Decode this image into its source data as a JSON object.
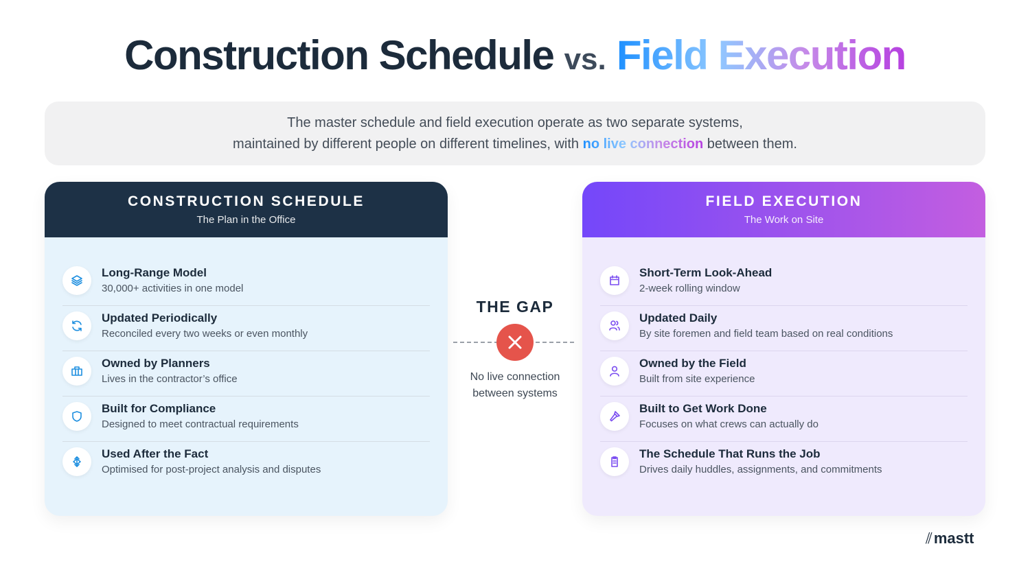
{
  "header": {
    "title_main": "Construction Schedule",
    "title_vs": "vs.",
    "title_accent": "Field Execution"
  },
  "intro": {
    "line1": "The master schedule and field execution operate as two separate systems,",
    "line2_start": "maintained by different people on different timelines, with",
    "line2_highlight": "no live connection",
    "line2_end": "between them."
  },
  "left_panel": {
    "title": "CONSTRUCTION SCHEDULE",
    "subtitle": "The Plan in the Office",
    "items": [
      {
        "title": "Long-Range Model",
        "description": "30,000+ activities in one model"
      },
      {
        "title": "Updated Periodically",
        "description": "Reconciled every two weeks or even monthly"
      },
      {
        "title": "Owned by Planners",
        "description": "Lives in the contractor’s office"
      },
      {
        "title": "Built for Compliance",
        "description": "Designed to meet contractual requirements"
      },
      {
        "title": "Used After the Fact",
        "description": "Optimised for post-project analysis and disputes"
      }
    ]
  },
  "gap": {
    "label": "THE GAP",
    "note_line1": "No live connection",
    "note_line2": "between systems"
  },
  "right_panel": {
    "title": "FIELD EXECUTION",
    "subtitle": "The Work on Site",
    "items": [
      {
        "title": "Short-Term Look-Ahead",
        "description": "2-week rolling window"
      },
      {
        "title": "Updated Daily",
        "description": "By site foremen and field team based on real conditions"
      },
      {
        "title": "Owned by the Field",
        "description": "Built from site experience"
      },
      {
        "title": "Built to Get Work Done",
        "description": "Focuses on what crews can actually do"
      },
      {
        "title": "The Schedule That Runs the Job",
        "description": "Drives daily huddles, assignments, and commitments"
      }
    ]
  },
  "footer": {
    "logo": "mastt"
  }
}
